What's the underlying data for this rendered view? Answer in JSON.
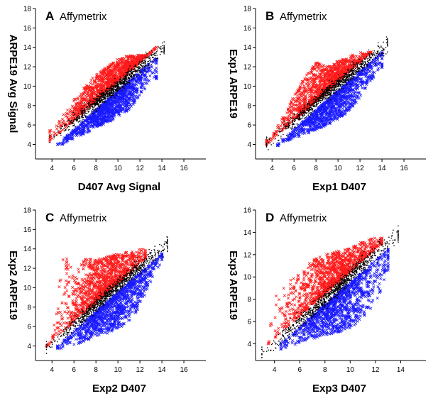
{
  "chart_data": [
    {
      "type": "scatter",
      "panel": "A",
      "title": "Affymetrix",
      "xlabel": "D407 Avg Signal",
      "ylabel": "ARPE19 Avg Signal",
      "x_ticks": [
        "4",
        "6",
        "8",
        "10",
        "12",
        "14",
        "16"
      ],
      "y_ticks": [
        "4",
        "6",
        "8",
        "10",
        "12",
        "14",
        "16",
        "18"
      ],
      "xlim": [
        2.5,
        18
      ],
      "ylim": [
        2.5,
        18
      ],
      "grid": false,
      "series": [
        {
          "role": "up",
          "color": "#ff1a1a",
          "marker": "x",
          "x_range": [
            3.8,
            13.5
          ],
          "points": [
            [
              4.2,
              5.6
            ],
            [
              5.0,
              7.0
            ],
            [
              6.0,
              8.6
            ],
            [
              7.0,
              10.0
            ],
            [
              8.0,
              11.2
            ],
            [
              9.0,
              12.0
            ],
            [
              10.0,
              12.8
            ],
            [
              11.0,
              13.2
            ]
          ]
        },
        {
          "role": "unchanged",
          "color": "#000000",
          "marker": "dot",
          "x_range": [
            3.8,
            14.2
          ],
          "points": [
            [
              4.0,
              4.8
            ],
            [
              6.0,
              6.5
            ],
            [
              8.0,
              8.3
            ],
            [
              10.0,
              10.0
            ],
            [
              12.0,
              12.0
            ],
            [
              14.0,
              13.8
            ]
          ]
        },
        {
          "role": "down",
          "color": "#1a1aff",
          "marker": "x",
          "x_range": [
            4.5,
            13.5
          ],
          "points": [
            [
              5.0,
              4.0
            ],
            [
              6.0,
              4.6
            ],
            [
              7.0,
              5.0
            ],
            [
              8.0,
              5.8
            ],
            [
              9.0,
              6.2
            ],
            [
              10.0,
              6.8
            ],
            [
              11.0,
              7.6
            ],
            [
              12.0,
              8.8
            ],
            [
              13.0,
              10.6
            ]
          ]
        }
      ]
    },
    {
      "type": "scatter",
      "panel": "B",
      "title": "Affymetrix",
      "xlabel": "Exp1 D407",
      "ylabel": "Exp1 ARPE19",
      "x_ticks": [
        "4",
        "6",
        "8",
        "10",
        "12",
        "14",
        "16"
      ],
      "y_ticks": [
        "4",
        "6",
        "8",
        "10",
        "12",
        "14",
        "16",
        "18"
      ],
      "xlim": [
        2.5,
        18
      ],
      "ylim": [
        2.5,
        18
      ],
      "grid": false,
      "series": [
        {
          "role": "up",
          "color": "#ff1a1a",
          "marker": "x",
          "x_range": [
            3.5,
            13.0
          ],
          "points": [
            [
              3.8,
              4.5
            ],
            [
              5.0,
              7.0
            ],
            [
              6.0,
              9.0
            ],
            [
              7.0,
              11.0
            ],
            [
              8.0,
              12.5
            ],
            [
              9.0,
              12.0
            ],
            [
              10.0,
              12.6
            ],
            [
              12.0,
              13.5
            ]
          ]
        },
        {
          "role": "unchanged",
          "color": "#000000",
          "marker": "dot",
          "x_range": [
            3.5,
            14.5
          ],
          "points": [
            [
              3.5,
              4.0
            ],
            [
              6.0,
              6.4
            ],
            [
              8.0,
              8.4
            ],
            [
              10.0,
              10.2
            ],
            [
              12.0,
              12.0
            ],
            [
              14.5,
              14.4
            ]
          ]
        },
        {
          "role": "down",
          "color": "#1a1aff",
          "marker": "x",
          "x_range": [
            4.5,
            14.0
          ],
          "points": [
            [
              4.5,
              3.8
            ],
            [
              6.0,
              4.6
            ],
            [
              7.0,
              5.0
            ],
            [
              8.0,
              5.5
            ],
            [
              9.0,
              6.0
            ],
            [
              10.0,
              6.6
            ],
            [
              11.0,
              7.4
            ],
            [
              12.0,
              8.8
            ],
            [
              13.0,
              10.4
            ],
            [
              13.8,
              11.8
            ]
          ]
        }
      ]
    },
    {
      "type": "scatter",
      "panel": "C",
      "title": "Affymetrix",
      "xlabel": "Exp2 D407",
      "ylabel": "Exp2 ARPE19",
      "x_ticks": [
        "4",
        "6",
        "8",
        "10",
        "12",
        "14",
        "16"
      ],
      "y_ticks": [
        "4",
        "6",
        "8",
        "10",
        "12",
        "14",
        "16",
        "18"
      ],
      "xlim": [
        2.5,
        18
      ],
      "ylim": [
        2.5,
        18
      ],
      "grid": false,
      "series": [
        {
          "role": "up",
          "color": "#ff1a1a",
          "marker": "x",
          "x_range": [
            3.5,
            12.5
          ],
          "points": [
            [
              3.8,
              3.5
            ],
            [
              4.5,
              8.5
            ],
            [
              5.0,
              13.8
            ],
            [
              6.0,
              11.5
            ],
            [
              7.0,
              13.0
            ],
            [
              8.0,
              13.0
            ],
            [
              9.0,
              13.2
            ],
            [
              10.0,
              13.5
            ],
            [
              12.0,
              14.0
            ]
          ]
        },
        {
          "role": "unchanged",
          "color": "#000000",
          "marker": "dot",
          "x_range": [
            3.5,
            14.5
          ],
          "points": [
            [
              3.5,
              3.8
            ],
            [
              6.0,
              6.2
            ],
            [
              8.0,
              8.2
            ],
            [
              10.0,
              10.2
            ],
            [
              12.0,
              12.2
            ],
            [
              14.5,
              14.6
            ]
          ]
        },
        {
          "role": "down",
          "color": "#1a1aff",
          "marker": "x",
          "x_range": [
            4.5,
            14.0
          ],
          "points": [
            [
              4.5,
              3.5
            ],
            [
              6.0,
              4.0
            ],
            [
              7.0,
              4.5
            ],
            [
              8.0,
              5.0
            ],
            [
              9.0,
              5.2
            ],
            [
              10.0,
              5.8
            ],
            [
              11.0,
              6.5
            ],
            [
              12.0,
              8.0
            ],
            [
              13.0,
              10.5
            ],
            [
              14.0,
              12.8
            ]
          ]
        }
      ]
    },
    {
      "type": "scatter",
      "panel": "D",
      "title": "Affymetrix",
      "xlabel": "Exp3 D407",
      "ylabel": "Exp3 ARPE19",
      "x_ticks": [
        "4",
        "6",
        "8",
        "10",
        "12",
        "14"
      ],
      "y_ticks": [
        "4",
        "6",
        "8",
        "10",
        "12",
        "14",
        "16"
      ],
      "xlim": [
        2.5,
        16
      ],
      "ylim": [
        2.5,
        16
      ],
      "grid": false,
      "series": [
        {
          "role": "up",
          "color": "#ff1a1a",
          "marker": "x",
          "x_range": [
            3.5,
            12.5
          ],
          "points": [
            [
              3.5,
              4.0
            ],
            [
              4.0,
              8.8
            ],
            [
              5.0,
              9.6
            ],
            [
              6.0,
              10.5
            ],
            [
              7.0,
              11.5
            ],
            [
              8.0,
              12.0
            ],
            [
              9.0,
              12.3
            ],
            [
              10.0,
              12.6
            ],
            [
              11.0,
              13.2
            ],
            [
              12.0,
              13.5
            ]
          ]
        },
        {
          "role": "unchanged",
          "color": "#000000",
          "marker": "dot",
          "x_range": [
            3.0,
            13.8
          ],
          "points": [
            [
              3.0,
              3.0
            ],
            [
              5.0,
              5.0
            ],
            [
              7.0,
              7.0
            ],
            [
              9.0,
              9.0
            ],
            [
              11.0,
              11.2
            ],
            [
              13.8,
              13.8
            ]
          ]
        },
        {
          "role": "down",
          "color": "#1a1aff",
          "marker": "x",
          "x_range": [
            4.5,
            13.0
          ],
          "points": [
            [
              4.5,
              3.5
            ],
            [
              6.0,
              4.0
            ],
            [
              7.0,
              4.4
            ],
            [
              8.0,
              4.8
            ],
            [
              9.0,
              5.0
            ],
            [
              10.0,
              5.4
            ],
            [
              11.0,
              6.0
            ],
            [
              12.0,
              7.6
            ],
            [
              13.0,
              10.5
            ]
          ]
        }
      ]
    }
  ]
}
